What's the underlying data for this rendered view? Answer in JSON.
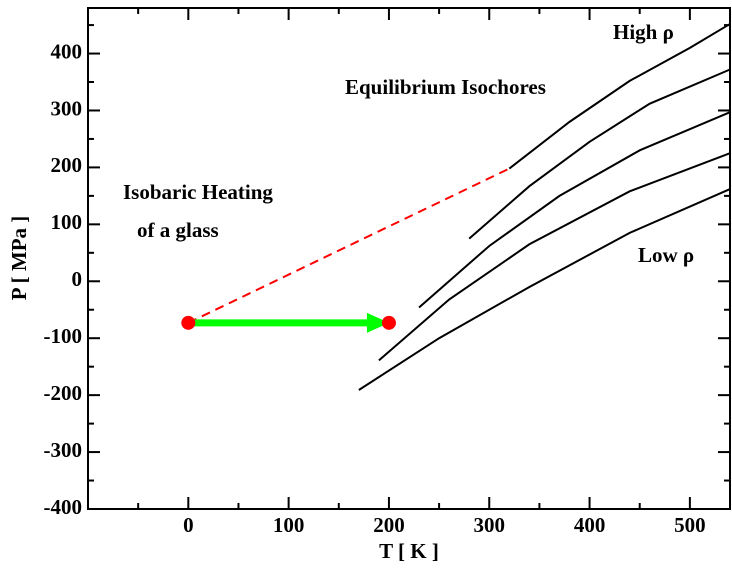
{
  "chart_data": {
    "type": "line",
    "x_label": "T [ K ]",
    "y_label": "P [ MPa ]",
    "xlim": [
      -100,
      540
    ],
    "ylim": [
      -400,
      480
    ],
    "xticks": [
      0,
      100,
      200,
      300,
      400,
      500
    ],
    "yticks": [
      -400,
      -300,
      -200,
      -100,
      0,
      100,
      200,
      300,
      400
    ],
    "xminorticks": [
      -50,
      50,
      150,
      250,
      350,
      450
    ],
    "yminorticks": [
      -350,
      -250,
      -150,
      -50,
      50,
      150,
      250,
      350,
      450
    ],
    "series": [
      {
        "color": "#000000",
        "x": [
          320,
          380,
          440,
          500,
          540
        ],
        "values": [
          198,
          280,
          352,
          410,
          452
        ]
      },
      {
        "color": "#000000",
        "x": [
          280,
          340,
          400,
          460,
          540
        ],
        "values": [
          75,
          167,
          245,
          312,
          372
        ]
      },
      {
        "color": "#000000",
        "x": [
          230,
          300,
          370,
          450,
          540
        ],
        "values": [
          -46,
          62,
          150,
          230,
          297
        ]
      },
      {
        "color": "#000000",
        "x": [
          190,
          260,
          340,
          440,
          540
        ],
        "values": [
          -139,
          -32,
          65,
          158,
          225
        ]
      },
      {
        "color": "#000000",
        "x": [
          170,
          250,
          340,
          440,
          540
        ],
        "values": [
          -191,
          -100,
          -10,
          85,
          162
        ]
      }
    ],
    "dashed_line": {
      "color": "#ff0000",
      "x": [
        0,
        320
      ],
      "values": [
        -73,
        198
      ]
    },
    "points": {
      "color": "#ff0000",
      "x": [
        0,
        200
      ],
      "values": [
        -73,
        -73
      ]
    },
    "arrow": {
      "color": "#00ff00",
      "x": [
        0,
        200
      ],
      "values": [
        -73,
        -73
      ]
    },
    "annotations": [
      "High ρ",
      "Equilibrium Isochores",
      "Isobaric Heating",
      "of a glass",
      "Low ρ"
    ]
  }
}
